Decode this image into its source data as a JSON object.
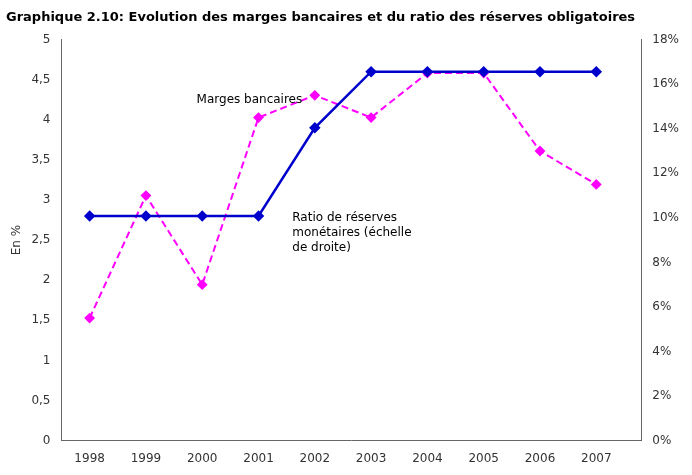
{
  "chart_data": {
    "type": "line",
    "title": "Graphique 2.10: Evolution des marges bancaires et du ratio des réserves obligatoires",
    "x": [
      1998,
      1999,
      2000,
      2001,
      2002,
      2003,
      2004,
      2005,
      2006,
      2007
    ],
    "series": [
      {
        "color": "#0000CC",
        "marker": "diamond",
        "line_style": "solid",
        "values": [
          2.8,
          2.8,
          2.8,
          2.8,
          3.9,
          4.6,
          4.6,
          4.6,
          4.6,
          4.6
        ]
      },
      {
        "color": "#FF00FF",
        "marker": "diamond",
        "line_style": "dashed",
        "axis": "y2",
        "values": [
          5.5,
          11.0,
          7.0,
          14.5,
          15.5,
          14.5,
          16.5,
          16.5,
          13.0,
          11.5
        ]
      }
    ],
    "ylabel": "En %",
    "xlim": [
      1997.5,
      2007.8
    ],
    "xticks": [
      1998,
      1999,
      2000,
      2001,
      2002,
      2003,
      2004,
      2005,
      2006,
      2007
    ],
    "ylim": [
      0,
      5
    ],
    "yticks": [
      0,
      {
        "value": 0.5,
        "label": "0,5"
      },
      1,
      {
        "value": 1.5,
        "label": "1,5"
      },
      2,
      {
        "value": 2.5,
        "label": "2,5"
      },
      3,
      {
        "value": 3.5,
        "label": "3,5"
      },
      4,
      {
        "value": 4.5,
        "label": "4,5"
      },
      5
    ],
    "y2lim": [
      0,
      18
    ],
    "y2ticks": [
      {
        "value": 0,
        "label": "0%"
      },
      {
        "value": 2,
        "label": "2%"
      },
      {
        "value": 4,
        "label": "4%"
      },
      {
        "value": 6,
        "label": "6%"
      },
      {
        "value": 8,
        "label": "8%"
      },
      {
        "value": 10,
        "label": "10%"
      },
      {
        "value": 12,
        "label": "12%"
      },
      {
        "value": 14,
        "label": "14%"
      },
      {
        "value": 16,
        "label": "16%"
      },
      {
        "value": 18,
        "label": "18%"
      }
    ],
    "annotations": [
      {
        "text": "Marges bancaires",
        "x": 1999.9,
        "y": 4.32
      },
      {
        "text": "Ratio de réserves\nmonétaires (échelle\nde droite)",
        "x": 2001.6,
        "y": 2.85
      }
    ],
    "grid": false
  }
}
